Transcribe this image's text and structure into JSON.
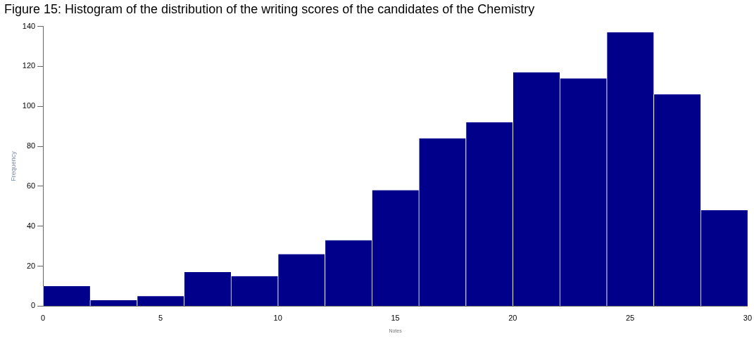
{
  "chart_data": {
    "type": "histogram",
    "title": "Figure 15: Histogram of the distribution of the writing scores of the candidates of the Chemistry",
    "xlabel": "Notes",
    "ylabel": "Frequency",
    "bins": [
      0,
      2,
      4,
      6,
      8,
      10,
      12,
      14,
      16,
      18,
      20,
      22,
      24,
      26,
      28,
      30
    ],
    "values": [
      10,
      3,
      5,
      17,
      15,
      26,
      33,
      58,
      84,
      92,
      117,
      114,
      137,
      106,
      48
    ],
    "color": "#00008b",
    "xlim": [
      0,
      30
    ],
    "xticks": [
      0,
      5,
      10,
      15,
      20,
      25,
      30
    ],
    "ylim": [
      0,
      140
    ],
    "yticks": [
      0,
      20,
      40,
      60,
      80,
      100,
      120,
      140
    ],
    "grid": false
  }
}
